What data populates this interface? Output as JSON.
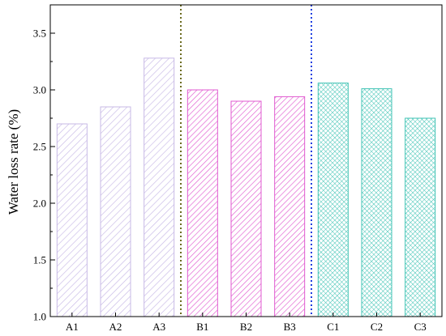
{
  "chart_data": {
    "type": "bar",
    "title": "",
    "xlabel": "",
    "ylabel": "Water loss rate (%)",
    "ylim": [
      1.0,
      3.75
    ],
    "yticks": [
      "1.0",
      "1.5",
      "2.0",
      "2.5",
      "3.0",
      "3.5"
    ],
    "grid": false,
    "categories": [
      "A1",
      "A2",
      "A3",
      "B1",
      "B2",
      "B3",
      "C1",
      "C2",
      "C3"
    ],
    "values": [
      2.7,
      2.85,
      3.28,
      3.0,
      2.9,
      2.94,
      3.06,
      3.01,
      2.75
    ],
    "groups": [
      {
        "members": [
          "A1",
          "A2",
          "A3"
        ],
        "color": "#c7b9e6",
        "pattern": "diagonal-hatch"
      },
      {
        "members": [
          "B1",
          "B2",
          "B3"
        ],
        "color": "#e05ad0",
        "pattern": "diagonal-hatch"
      },
      {
        "members": [
          "C1",
          "C2",
          "C3"
        ],
        "color": "#3fc3b4",
        "pattern": "cross-hatch"
      }
    ],
    "separators": [
      {
        "after": "A3",
        "color": "#6b6b1f",
        "style": "dotted"
      },
      {
        "after": "B3",
        "color": "#1f3fe0",
        "style": "dotted"
      }
    ]
  }
}
